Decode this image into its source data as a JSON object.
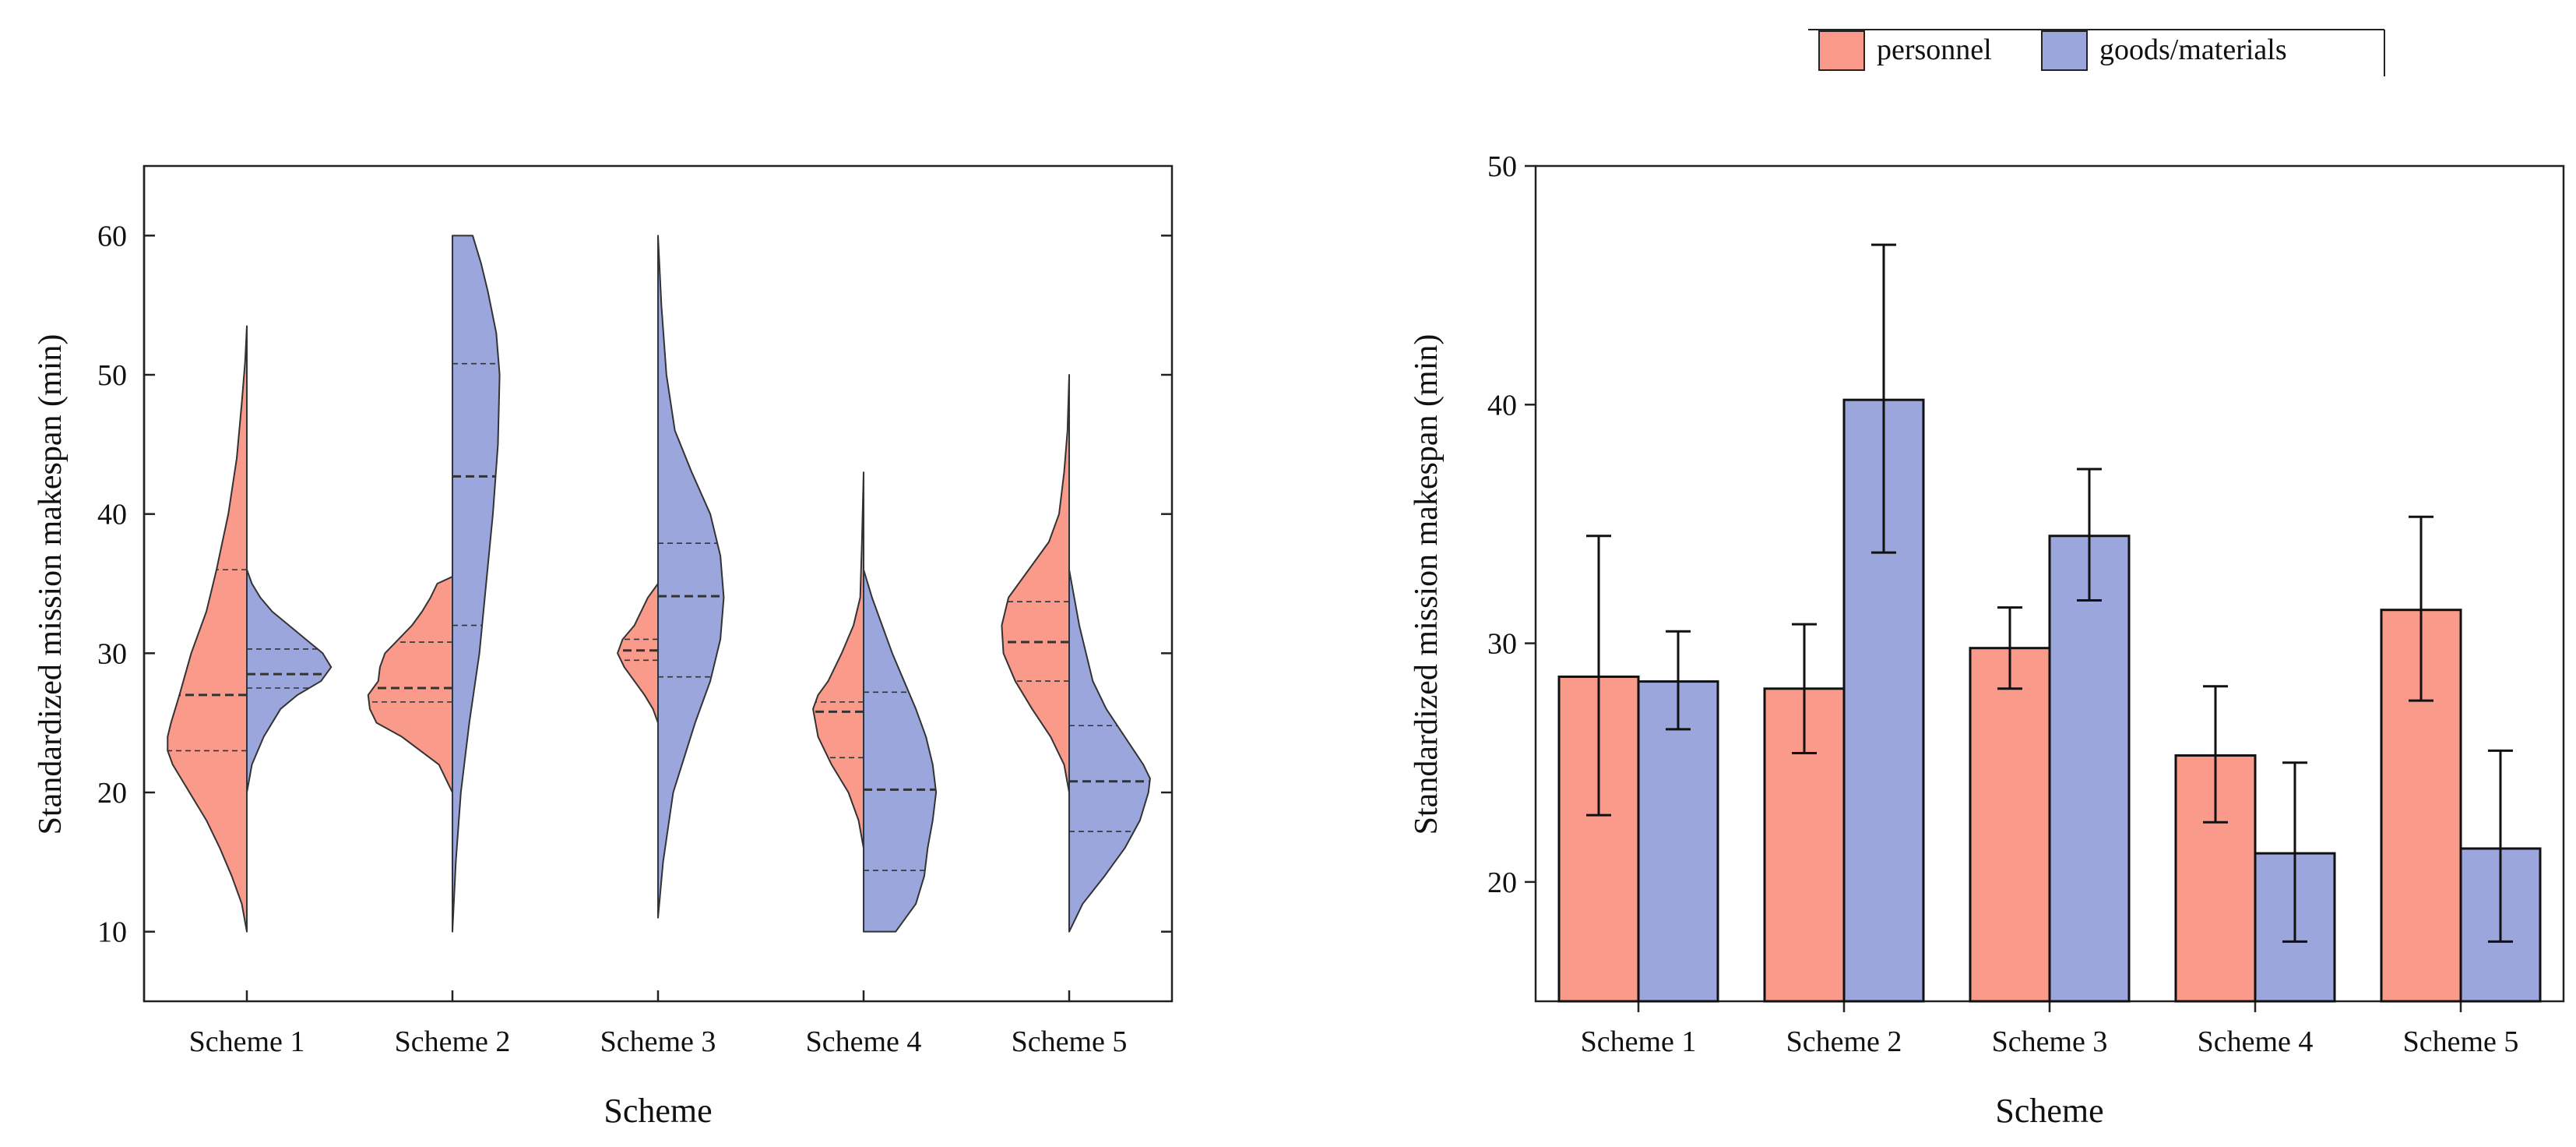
{
  "legend": {
    "items": [
      {
        "label": "personnel",
        "color": "#fa9a8a"
      },
      {
        "label": "goods/materials",
        "color": "#9aa6dc"
      }
    ]
  },
  "colors": {
    "personnel": "#fa9a8a",
    "goods": "#9aa6dc",
    "axis": "#222222"
  },
  "chart_data": [
    {
      "type": "violin",
      "title": "",
      "xlabel": "Scheme",
      "ylabel": "Standardized mission makespan (min)",
      "categories": [
        "Scheme 1",
        "Scheme 2",
        "Scheme 3",
        "Scheme 4",
        "Scheme 5"
      ],
      "ylim": [
        5,
        65
      ],
      "yticks": [
        10,
        20,
        30,
        40,
        50,
        60
      ],
      "series": [
        {
          "name": "personnel",
          "side": "left",
          "violins": [
            {
              "min": 10,
              "max": 53.5,
              "q1": 23,
              "median": 27,
              "q3": 36,
              "mean_lines": [
                23,
                27,
                36
              ],
              "profile": [
                [
                  10,
                  0.0
                ],
                [
                  12,
                  0.03
                ],
                [
                  14,
                  0.09
                ],
                [
                  16,
                  0.16
                ],
                [
                  18,
                  0.24
                ],
                [
                  20,
                  0.34
                ],
                [
                  22,
                  0.44
                ],
                [
                  23,
                  0.47
                ],
                [
                  24,
                  0.47
                ],
                [
                  25,
                  0.45
                ],
                [
                  27,
                  0.4
                ],
                [
                  30,
                  0.33
                ],
                [
                  33,
                  0.24
                ],
                [
                  36,
                  0.18
                ],
                [
                  40,
                  0.11
                ],
                [
                  44,
                  0.06
                ],
                [
                  48,
                  0.03
                ],
                [
                  51,
                  0.01
                ],
                [
                  53.5,
                  0.0
                ]
              ]
            },
            {
              "min": 20,
              "max": 35.5,
              "q1": 26.5,
              "median": 27.5,
              "q3": 30.8,
              "mean_lines": [
                26.5,
                27.5,
                30.8
              ],
              "profile": [
                [
                  20,
                  0.0
                ],
                [
                  22,
                  0.08
                ],
                [
                  24,
                  0.3
                ],
                [
                  25,
                  0.45
                ],
                [
                  26,
                  0.49
                ],
                [
                  27,
                  0.5
                ],
                [
                  28,
                  0.44
                ],
                [
                  29,
                  0.43
                ],
                [
                  30,
                  0.4
                ],
                [
                  31,
                  0.32
                ],
                [
                  32,
                  0.24
                ],
                [
                  33,
                  0.18
                ],
                [
                  34,
                  0.13
                ],
                [
                  35,
                  0.09
                ],
                [
                  35.5,
                  0.0
                ]
              ]
            },
            {
              "min": 25,
              "max": 35,
              "q1": 29.5,
              "median": 30.2,
              "q3": 31,
              "mean_lines": [
                29.5,
                30.2,
                31
              ],
              "profile": [
                [
                  25,
                  0.0
                ],
                [
                  26,
                  0.03
                ],
                [
                  27,
                  0.08
                ],
                [
                  28,
                  0.14
                ],
                [
                  29,
                  0.2
                ],
                [
                  30,
                  0.24
                ],
                [
                  31,
                  0.21
                ],
                [
                  32,
                  0.14
                ],
                [
                  33,
                  0.1
                ],
                [
                  34,
                  0.06
                ],
                [
                  35,
                  0.0
                ]
              ]
            },
            {
              "min": 16,
              "max": 43,
              "q1": 22.5,
              "median": 25.8,
              "q3": 26.5,
              "mean_lines": [
                22.5,
                25.8,
                26.5
              ],
              "profile": [
                [
                  16,
                  0.0
                ],
                [
                  18,
                  0.03
                ],
                [
                  20,
                  0.09
                ],
                [
                  22,
                  0.19
                ],
                [
                  24,
                  0.27
                ],
                [
                  26,
                  0.3
                ],
                [
                  27,
                  0.27
                ],
                [
                  28,
                  0.21
                ],
                [
                  30,
                  0.13
                ],
                [
                  32,
                  0.06
                ],
                [
                  34,
                  0.02
                ],
                [
                  38,
                  0.01
                ],
                [
                  43,
                  0.0
                ]
              ]
            },
            {
              "min": 20,
              "max": 50,
              "q1": 28,
              "median": 30.8,
              "q3": 33.7,
              "mean_lines": [
                28,
                30.8,
                33.7
              ],
              "profile": [
                [
                  20,
                  0.0
                ],
                [
                  22,
                  0.03
                ],
                [
                  24,
                  0.11
                ],
                [
                  26,
                  0.22
                ],
                [
                  28,
                  0.32
                ],
                [
                  30,
                  0.39
                ],
                [
                  32,
                  0.4
                ],
                [
                  34,
                  0.36
                ],
                [
                  36,
                  0.24
                ],
                [
                  38,
                  0.12
                ],
                [
                  40,
                  0.06
                ],
                [
                  43,
                  0.03
                ],
                [
                  46,
                  0.01
                ],
                [
                  50,
                  0.0
                ]
              ]
            }
          ]
        },
        {
          "name": "goods/materials",
          "side": "right",
          "violins": [
            {
              "min": 20,
              "max": 36,
              "q1": 27.5,
              "median": 28.5,
              "q3": 30.3,
              "mean_lines": [
                27.5,
                28.5,
                30.3
              ],
              "profile": [
                [
                  20,
                  0.0
                ],
                [
                  22,
                  0.03
                ],
                [
                  24,
                  0.1
                ],
                [
                  26,
                  0.2
                ],
                [
                  27,
                  0.3
                ],
                [
                  28,
                  0.44
                ],
                [
                  29,
                  0.5
                ],
                [
                  30,
                  0.45
                ],
                [
                  31,
                  0.35
                ],
                [
                  32,
                  0.25
                ],
                [
                  33,
                  0.15
                ],
                [
                  34,
                  0.08
                ],
                [
                  35,
                  0.03
                ],
                [
                  36,
                  0.0
                ]
              ]
            },
            {
              "min": 10,
              "max": 60,
              "q1": 32,
              "median": 42.7,
              "q3": 50.8,
              "mean_lines": [
                32,
                42.7,
                50.8
              ],
              "profile": [
                [
                  10,
                  0.0
                ],
                [
                  15,
                  0.02
                ],
                [
                  20,
                  0.05
                ],
                [
                  25,
                  0.1
                ],
                [
                  30,
                  0.16
                ],
                [
                  35,
                  0.2
                ],
                [
                  40,
                  0.24
                ],
                [
                  45,
                  0.27
                ],
                [
                  50,
                  0.28
                ],
                [
                  53,
                  0.26
                ],
                [
                  56,
                  0.21
                ],
                [
                  58,
                  0.17
                ],
                [
                  60,
                  0.12
                ]
              ]
            },
            {
              "min": 11,
              "max": 60,
              "q1": 28.3,
              "median": 34.1,
              "q3": 37.9,
              "mean_lines": [
                28.3,
                34.1,
                37.9
              ],
              "profile": [
                [
                  11,
                  0.0
                ],
                [
                  15,
                  0.03
                ],
                [
                  20,
                  0.09
                ],
                [
                  25,
                  0.22
                ],
                [
                  28,
                  0.31
                ],
                [
                  31,
                  0.37
                ],
                [
                  34,
                  0.39
                ],
                [
                  37,
                  0.37
                ],
                [
                  40,
                  0.31
                ],
                [
                  43,
                  0.2
                ],
                [
                  46,
                  0.1
                ],
                [
                  50,
                  0.05
                ],
                [
                  55,
                  0.02
                ],
                [
                  60,
                  0.0
                ]
              ]
            },
            {
              "min": 10,
              "max": 36,
              "q1": 14.4,
              "median": 20.2,
              "q3": 27.2,
              "mean_lines": [
                14.4,
                20.2,
                27.2
              ],
              "profile": [
                [
                  10,
                  0.19
                ],
                [
                  12,
                  0.31
                ],
                [
                  14,
                  0.36
                ],
                [
                  16,
                  0.38
                ],
                [
                  18,
                  0.41
                ],
                [
                  20,
                  0.43
                ],
                [
                  22,
                  0.41
                ],
                [
                  24,
                  0.37
                ],
                [
                  26,
                  0.31
                ],
                [
                  28,
                  0.24
                ],
                [
                  30,
                  0.17
                ],
                [
                  32,
                  0.11
                ],
                [
                  34,
                  0.05
                ],
                [
                  36,
                  0.0
                ]
              ]
            },
            {
              "min": 10,
              "max": 36,
              "q1": 17.2,
              "median": 20.8,
              "q3": 24.8,
              "mean_lines": [
                17.2,
                20.8,
                24.8
              ],
              "profile": [
                [
                  10,
                  0.0
                ],
                [
                  12,
                  0.08
                ],
                [
                  14,
                  0.21
                ],
                [
                  16,
                  0.33
                ],
                [
                  18,
                  0.42
                ],
                [
                  20,
                  0.47
                ],
                [
                  21,
                  0.48
                ],
                [
                  22,
                  0.44
                ],
                [
                  24,
                  0.33
                ],
                [
                  26,
                  0.22
                ],
                [
                  28,
                  0.14
                ],
                [
                  30,
                  0.1
                ],
                [
                  32,
                  0.06
                ],
                [
                  34,
                  0.03
                ],
                [
                  36,
                  0.0
                ]
              ]
            }
          ]
        }
      ]
    },
    {
      "type": "bar",
      "title": "",
      "xlabel": "Scheme",
      "ylabel": "Standardized mission makespan (min)",
      "categories": [
        "Scheme 1",
        "Scheme 2",
        "Scheme 3",
        "Scheme 4",
        "Scheme 5"
      ],
      "ylim": [
        15,
        50
      ],
      "yticks": [
        20,
        30,
        40,
        50
      ],
      "error_bars": "low/high",
      "series": [
        {
          "name": "personnel",
          "values": [
            28.6,
            28.1,
            29.8,
            25.3,
            31.4
          ],
          "err_low": [
            22.8,
            25.4,
            28.1,
            22.5,
            27.6
          ],
          "err_high": [
            34.5,
            30.8,
            31.5,
            28.2,
            35.3
          ]
        },
        {
          "name": "goods/materials",
          "values": [
            28.4,
            40.2,
            34.5,
            21.2,
            21.4
          ],
          "err_low": [
            26.4,
            33.8,
            31.8,
            17.5,
            17.5
          ],
          "err_high": [
            30.5,
            46.7,
            37.3,
            25.0,
            25.5
          ]
        }
      ]
    }
  ]
}
